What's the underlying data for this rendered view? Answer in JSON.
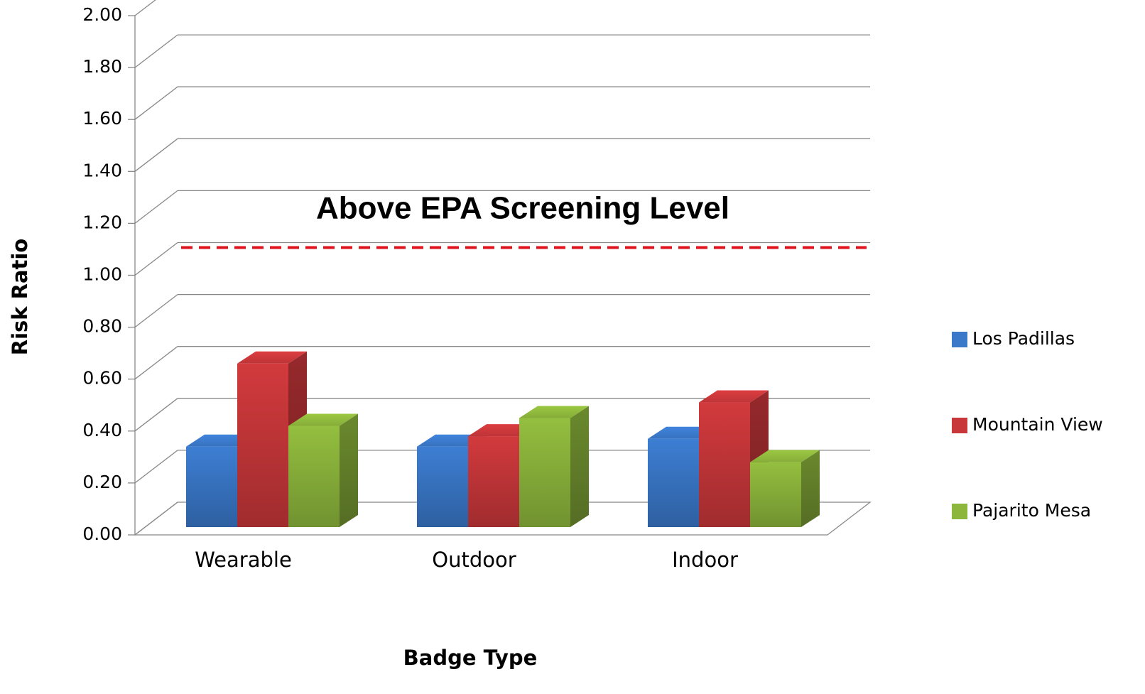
{
  "chart_data": {
    "type": "bar3d",
    "annotation": "Above EPA Screening Level",
    "x_label": "Badge Type",
    "y_label": "Risk Ratio",
    "categories": [
      "Wearable",
      "Outdoor",
      "Indoor"
    ],
    "series": [
      {
        "name": "Los Padillas",
        "color": "#3a78c9",
        "values": [
          0.31,
          0.31,
          0.34
        ]
      },
      {
        "name": "Mountain View",
        "color": "#c8373a",
        "values": [
          0.63,
          0.35,
          0.48
        ]
      },
      {
        "name": "Pajarito Mesa",
        "color": "#8db63c",
        "values": [
          0.39,
          0.42,
          0.25
        ]
      }
    ],
    "ylim": [
      0,
      2
    ],
    "yticks": [
      {
        "value": 0,
        "label": "0.00"
      },
      {
        "value": 0.2,
        "label": "0.20"
      },
      {
        "value": 0.4,
        "label": "0.40"
      },
      {
        "value": 0.6,
        "label": "0.60"
      },
      {
        "value": 0.8,
        "label": "0.80"
      },
      {
        "value": 1,
        "label": "1.00"
      },
      {
        "value": 1.2,
        "label": "1.20"
      },
      {
        "value": 1.4,
        "label": "1.40"
      },
      {
        "value": 1.6,
        "label": "1.60"
      },
      {
        "value": 1.8,
        "label": "1.80"
      },
      {
        "value": 2,
        "label": "2.00"
      }
    ],
    "reference_line": {
      "value": 1,
      "color": "#e0141e"
    },
    "grid": true
  }
}
